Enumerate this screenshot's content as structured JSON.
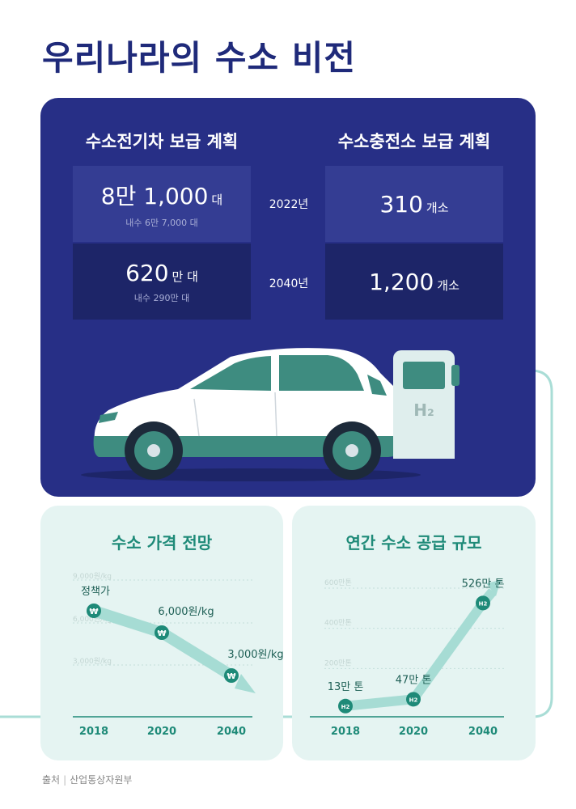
{
  "title": "우리나라의 수소 비전",
  "hero": {
    "vehicle_heading": "수소전기차 보급 계획",
    "station_heading": "수소충전소 보급 계획",
    "rows": [
      {
        "year": "2022년",
        "vehicle_value": "8만 1,000",
        "vehicle_unit": "대",
        "vehicle_sub": "내수 6만 7,000 대",
        "station_value": "310",
        "station_unit": "개소"
      },
      {
        "year": "2040년",
        "vehicle_value": "620",
        "vehicle_unit": "만 대",
        "vehicle_sub": "내수 290만 대",
        "station_value": "1,200",
        "station_unit": "개소"
      }
    ],
    "charger_label": "H₂"
  },
  "price_card": {
    "title": "수소 가격 전망",
    "policy_label": "정책가",
    "currency_icon": "won-icon",
    "grid_labels": [
      "9,000원/kg",
      "6,000원/kg",
      "3,000원/kg"
    ],
    "points": [
      {
        "x": "2018",
        "label": "",
        "value": 9000
      },
      {
        "x": "2020",
        "label": "6,000원/kg",
        "value": 6000
      },
      {
        "x": "2040",
        "label": "3,000원/kg",
        "value": 3000
      }
    ]
  },
  "supply_card": {
    "title": "연간 수소 공급 규모",
    "grid_labels": [
      "600만톤",
      "400만톤",
      "200만톤"
    ],
    "points": [
      {
        "x": "2018",
        "label": "13만 톤",
        "value": 13
      },
      {
        "x": "2020",
        "label": "47만 톤",
        "value": 47
      },
      {
        "x": "2040",
        "label": "526만 톤",
        "value": 526
      }
    ],
    "marker_label": "H2"
  },
  "source": {
    "label": "출처",
    "value": "산업통상자원부"
  },
  "colors": {
    "navy": "#272f86",
    "teal": "#1e8a78",
    "mint_bg": "#e5f4f2"
  }
}
